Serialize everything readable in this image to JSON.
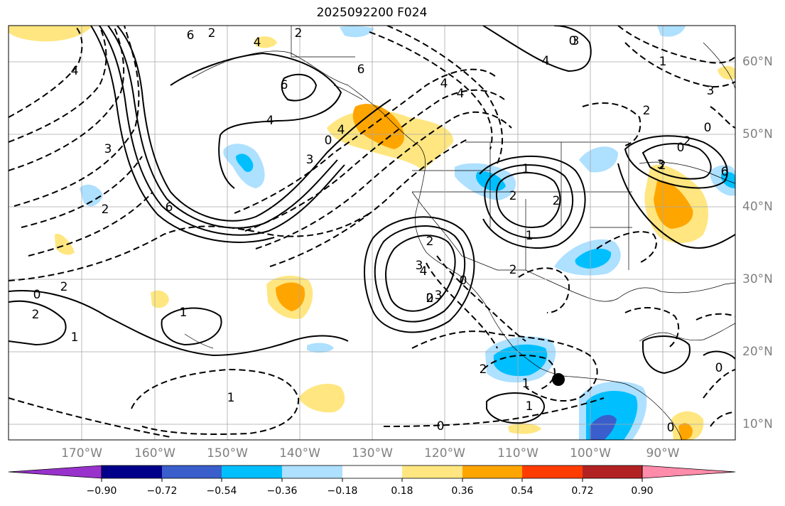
{
  "title": "2025092200 F024",
  "lon_labels": [
    {
      "value": -170,
      "text": "170°W"
    },
    {
      "value": -160,
      "text": "160°W"
    },
    {
      "value": -150,
      "text": "150°W"
    },
    {
      "value": -140,
      "text": "140°W"
    },
    {
      "value": -130,
      "text": "130°W"
    },
    {
      "value": -120,
      "text": "120°W"
    },
    {
      "value": -110,
      "text": "110°W"
    },
    {
      "value": -100,
      "text": "100°W"
    },
    {
      "value": -90,
      "text": "90°W"
    }
  ],
  "lat_labels": [
    {
      "value": 60,
      "text": "60°N"
    },
    {
      "value": 50,
      "text": "50°N"
    },
    {
      "value": 40,
      "text": "40°N"
    },
    {
      "value": 30,
      "text": "30°N"
    },
    {
      "value": 20,
      "text": "20°N"
    },
    {
      "value": 10,
      "text": "10°N"
    }
  ],
  "colorbar": {
    "ticks": [
      "−0.90",
      "−0.72",
      "−0.54",
      "−0.36",
      "−0.18",
      "0.18",
      "0.36",
      "0.54",
      "0.72",
      "0.90"
    ],
    "colors": [
      "#9932cc",
      "#00008b",
      "#3a5ecc",
      "#00bfff",
      "#aee0ff",
      "#ffffff",
      "#ffe680",
      "#ffa500",
      "#ff3c00",
      "#b22222",
      "#ff8caa"
    ]
  },
  "contour_labels": [
    "4",
    "6",
    "2",
    "4",
    "6",
    "4",
    "6",
    "2",
    "4",
    "4",
    "3",
    "2",
    "6",
    "3",
    "0",
    "4",
    "1",
    "2",
    "2",
    "1",
    "2",
    "3",
    "2",
    "4",
    "3",
    "0",
    "2",
    "1",
    "2",
    "1",
    "0",
    "2",
    "0",
    "2",
    "1",
    "1",
    "0",
    "0",
    "0",
    "1",
    "0",
    "0",
    "2",
    "0",
    "1",
    "2",
    "3",
    "4",
    "6",
    "2",
    "3",
    "3"
  ],
  "marker": {
    "lon": -104.2,
    "lat": 16.4
  }
}
